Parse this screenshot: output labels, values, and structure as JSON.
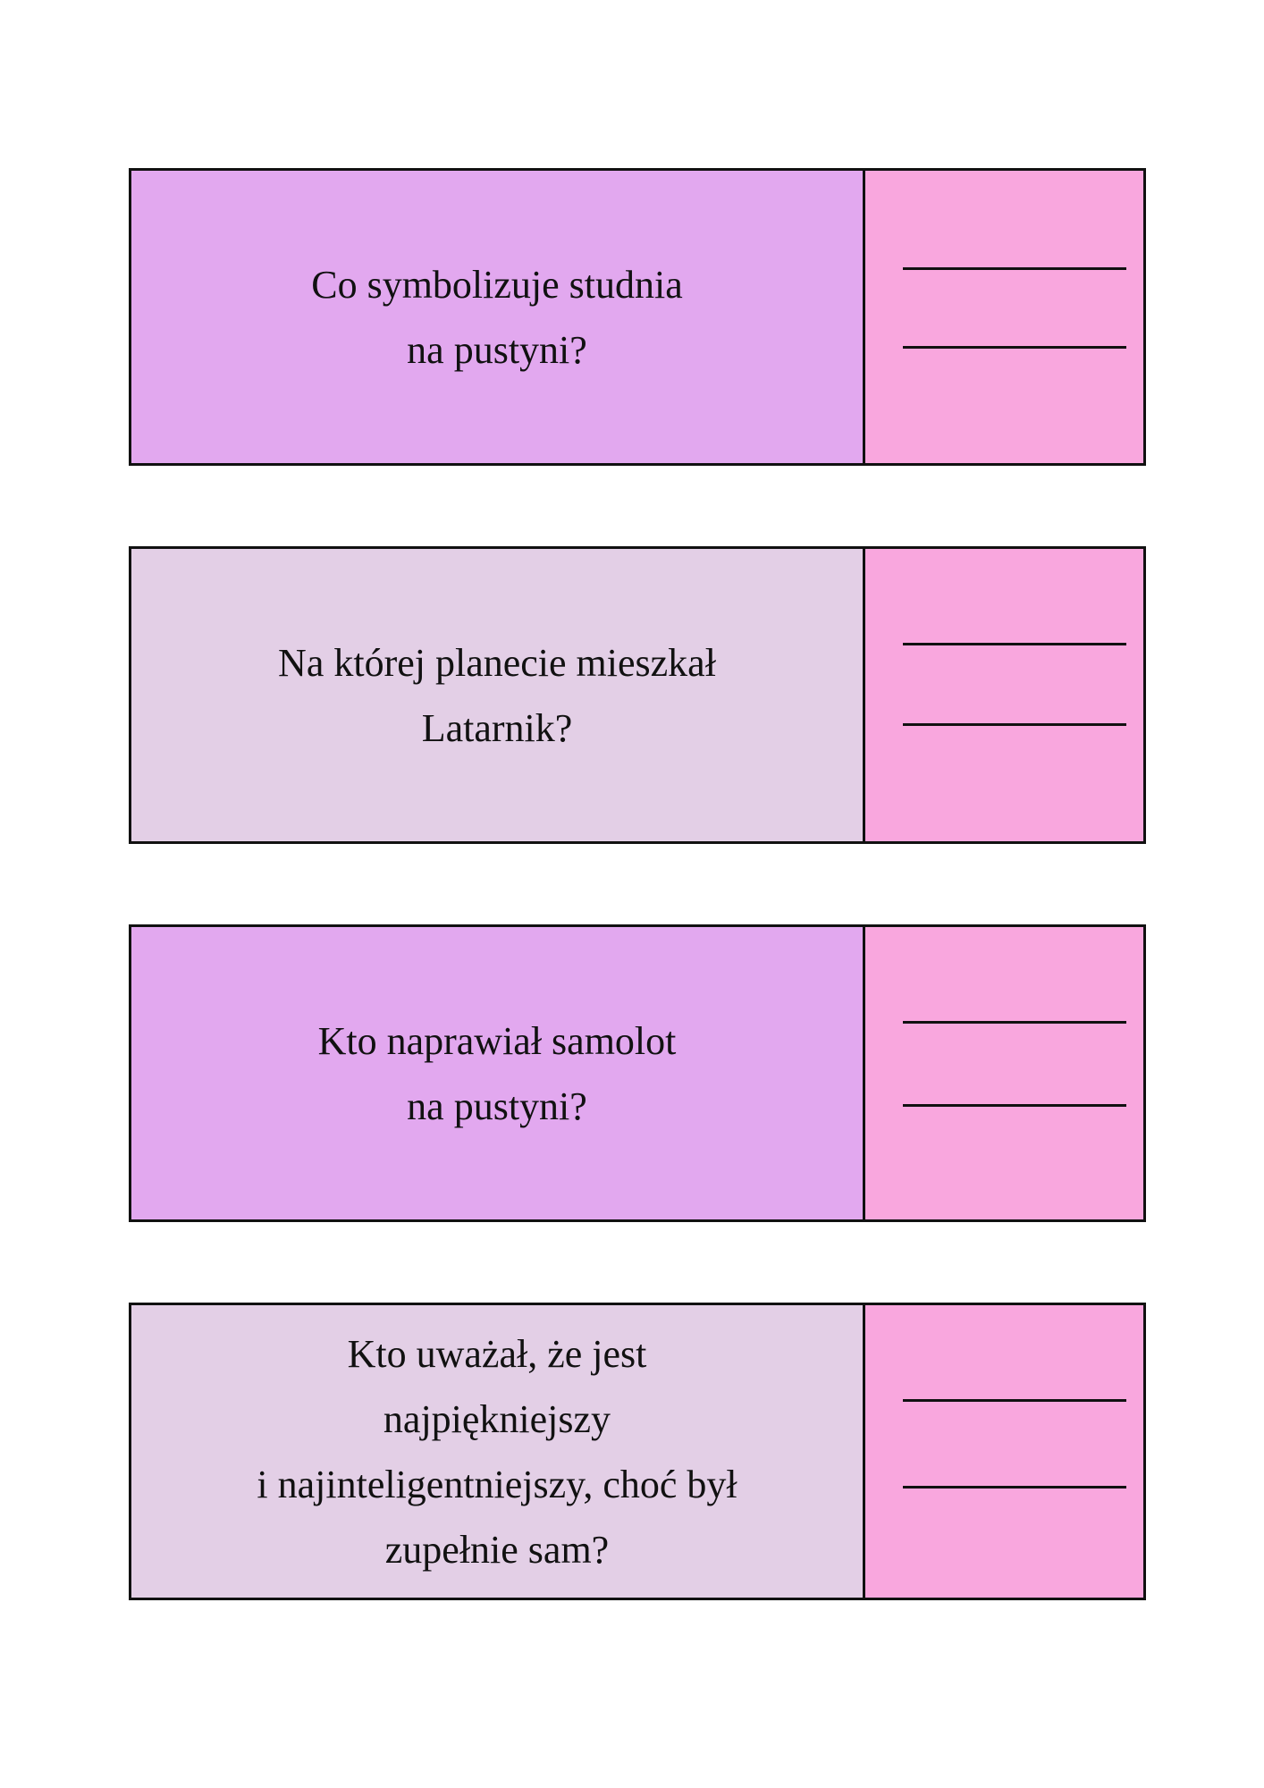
{
  "colors": {
    "question_dark": "#e2a8ef",
    "question_light": "#e3cfe6",
    "answer": "#f9a7de",
    "border": "#111111"
  },
  "cards": [
    {
      "question": "Co symbolizuje studnia\nna pustyni?"
    },
    {
      "question": "Na której planecie mieszkał\nLatarnik?"
    },
    {
      "question": "Kto naprawiał samolot\nna pustyni?"
    },
    {
      "question": "Kto uważał, że jest\nnajpiękniejszy\ni najinteligentniejszy, choć był\nzupełnie sam?"
    }
  ]
}
